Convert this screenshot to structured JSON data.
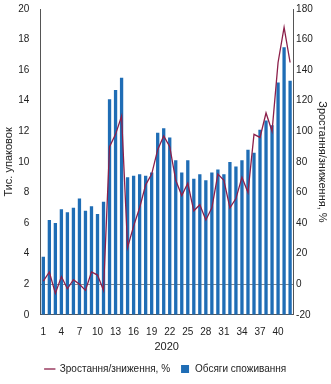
{
  "chart_data": {
    "type": "bar",
    "x_label": "2020",
    "categories": [
      "1",
      null,
      null,
      "4",
      null,
      null,
      "7",
      null,
      null,
      "10",
      null,
      null,
      "13",
      null,
      null,
      "16",
      null,
      null,
      "19",
      null,
      null,
      "22",
      null,
      null,
      "25",
      null,
      null,
      "28",
      null,
      null,
      "31",
      null,
      null,
      "34",
      null,
      null,
      "37",
      null,
      null,
      "40",
      null,
      null
    ],
    "series": [
      {
        "name": "Обсяги споживання",
        "type": "bar",
        "color": "#1f6db5",
        "values": [
          3.8,
          6.2,
          6.0,
          6.9,
          6.7,
          7.0,
          7.6,
          6.8,
          7.1,
          6.6,
          7.4,
          14.1,
          14.7,
          15.5,
          9.0,
          9.1,
          9.2,
          9.1,
          9.3,
          11.9,
          12.2,
          11.6,
          10.1,
          9.3,
          10.1,
          8.9,
          9.2,
          8.8,
          9.3,
          9.5,
          9.2,
          10.0,
          9.7,
          10.1,
          10.8,
          10.6,
          12.1,
          12.7,
          12.4,
          15.2,
          17.5,
          15.3
        ]
      },
      {
        "name": "Зростання/зниження, %",
        "type": "line",
        "color": "#8c1f4a",
        "axis": "y2",
        "values": [
          2,
          8,
          -6,
          5,
          -3,
          3,
          0,
          -4,
          8,
          6,
          -4,
          90,
          98,
          110,
          24,
          38,
          50,
          65,
          72,
          88,
          97,
          90,
          68,
          58,
          66,
          48,
          52,
          42,
          50,
          72,
          68,
          50,
          56,
          70,
          60,
          98,
          96,
          112,
          100,
          145,
          168,
          145
        ]
      }
    ],
    "y_label": "Тис. упаковок",
    "y2_label": "Зростання/зниження, %",
    "ylim": [
      0,
      20
    ],
    "yticks": [
      0,
      2,
      4,
      6,
      8,
      10,
      12,
      14,
      16,
      18,
      20
    ],
    "y2lim": [
      -20,
      180
    ],
    "y2ticks": [
      -20,
      0,
      20,
      40,
      60,
      80,
      100,
      120,
      140,
      160,
      180
    ],
    "grid": false,
    "legend": "bottom"
  }
}
